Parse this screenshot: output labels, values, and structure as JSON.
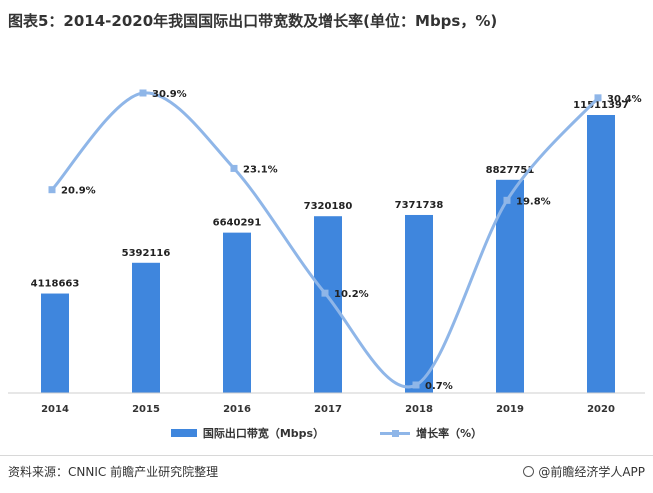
{
  "title": "图表5：2014-2020年我国国际出口带宽数及增长率(单位：Mbps，%)",
  "footer": {
    "source": "资料来源：CNNIC 前瞻产业研究院整理",
    "brand": "@前瞻经济学人APP"
  },
  "colors": {
    "bar": "#3f86dd",
    "line": "#8fb6e8"
  },
  "chart_data": {
    "type": "bar",
    "categories": [
      "2014",
      "2015",
      "2016",
      "2017",
      "2018",
      "2019",
      "2020"
    ],
    "series": [
      {
        "name": "国际出口带宽（Mbps）",
        "type": "bar",
        "values": [
          4118663,
          5392116,
          6640291,
          7320180,
          7371738,
          8827751,
          11511397
        ],
        "labels": [
          "4118663",
          "5392116",
          "6640291",
          "7320180",
          "7371738",
          "8827751",
          "11511397"
        ]
      },
      {
        "name": "增长率（%）",
        "type": "line",
        "values": [
          20.9,
          30.9,
          23.1,
          10.2,
          0.7,
          19.8,
          30.4
        ],
        "labels": [
          "20.9%",
          "30.9%",
          "23.1%",
          "10.2%",
          "0.7%",
          "19.8%",
          "30.4%"
        ]
      }
    ],
    "legend_position": "bottom",
    "grid": false
  }
}
